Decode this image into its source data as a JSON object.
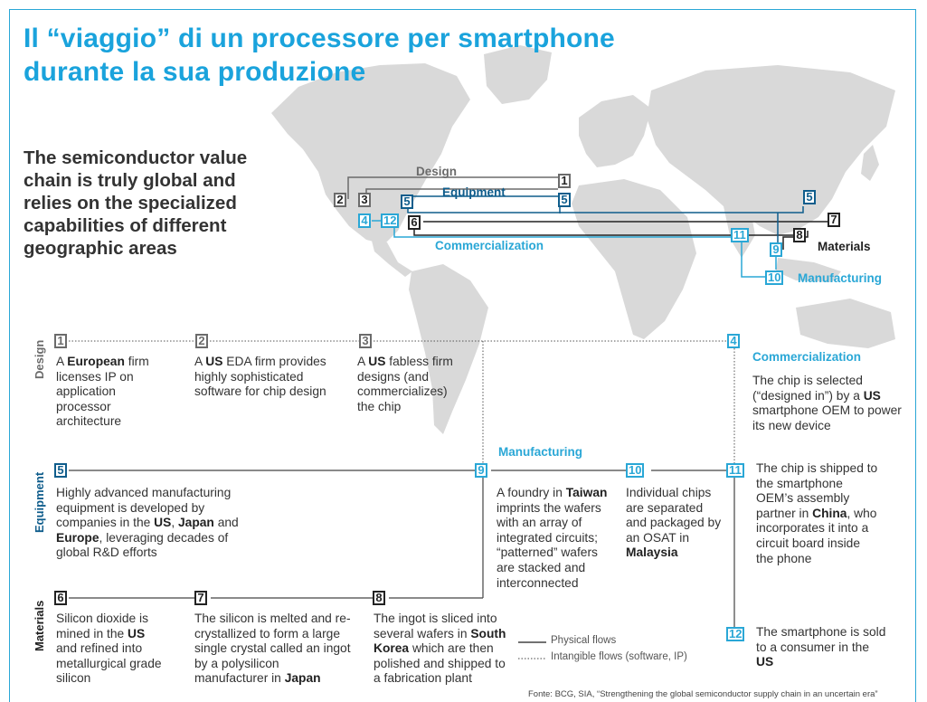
{
  "title": "Il “viaggio” di un processore per smartphone durante la sua produzione",
  "title_lines": [
    "Il “viaggio” di un processore per smartphone",
    "durante la sua produzione"
  ],
  "intro": "The semiconductor value chain is truly global and relies on the specialized capabilities of different geographic areas",
  "map": {
    "labels": {
      "design": "Design",
      "equipment": "Equipment",
      "commercialization": "Commercialization",
      "materials": "Materials",
      "manufacturing": "Manufacturing"
    },
    "markers": [
      "1",
      "2",
      "3",
      "4",
      "5",
      "5",
      "5",
      "6",
      "7",
      "8",
      "9",
      "10",
      "11",
      "12"
    ]
  },
  "row_labels": {
    "design": "Design",
    "equipment": "Equipment",
    "materials": "Materials"
  },
  "section_heads": {
    "manufacturing": "Manufacturing",
    "commercialization": "Commercialization"
  },
  "steps": {
    "s1": {
      "num": "1",
      "pre": "A ",
      "bold": "European",
      "post": " firm licenses IP on application processor architecture"
    },
    "s2": {
      "num": "2",
      "pre": "A ",
      "bold": "US",
      "post": " EDA firm provides highly sophisticated software for chip design"
    },
    "s3": {
      "num": "3",
      "pre": "A ",
      "bold": "US",
      "post": " fabless firm designs (and commercializes) the chip"
    },
    "s4": {
      "num": "4",
      "text": "The chip is selected (“designed in”) by a ",
      "bold": "US",
      "post": " smartphone OEM to power its new device"
    },
    "s5": {
      "num": "5",
      "pre": "Highly advanced manufacturing equipment is developed by companies in the ",
      "b1": "US",
      "m1": ", ",
      "b2": "Japan",
      "m2": " and ",
      "b3": "Europe",
      "post": ", leveraging decades of global R&D efforts"
    },
    "s6": {
      "num": "6",
      "pre": "Silicon dioxide is mined in the ",
      "bold": "US",
      "post": " and refined into metallurgical grade silicon"
    },
    "s7": {
      "num": "7",
      "pre": "The silicon is melted and re-crystallized to form a large single crystal called an ingot by a polysilicon manufacturer in ",
      "bold": "Japan",
      "post": ""
    },
    "s8": {
      "num": "8",
      "pre": "The ingot is sliced into several wafers in ",
      "bold": "South Korea",
      "post": " which are then polished and shipped to a fabrication plant"
    },
    "s9": {
      "num": "9",
      "pre": "A foundry in ",
      "bold": "Taiwan",
      "post": " imprints the wafers with an array of integrated circuits; “patterned” wafers are stacked and interconnected"
    },
    "s10": {
      "num": "10",
      "pre": "Individual chips are separated and packaged by an OSAT in ",
      "bold": "Malaysia",
      "post": ""
    },
    "s11": {
      "num": "11",
      "pre": "The chip is shipped to the smartphone OEM’s assembly partner in ",
      "bold": "China",
      "post": ", who incorporates it into a circuit board inside the phone"
    },
    "s12": {
      "num": "12",
      "pre": "The smartphone is sold to a consumer in the ",
      "bold": "US",
      "post": ""
    }
  },
  "legend": {
    "physical": "Physical flows",
    "intangible": "Intangible flows (software, IP)"
  },
  "source": "Fonte: BCG, SIA, “Strengthening the global semiconductor supply chain in an uncertain era”",
  "colors": {
    "title": "#1aa3dc",
    "navy": "#0f5d8c",
    "cyan": "#2aa7d6",
    "grey": "#6b6b6b",
    "land": "#d9d9d9"
  }
}
